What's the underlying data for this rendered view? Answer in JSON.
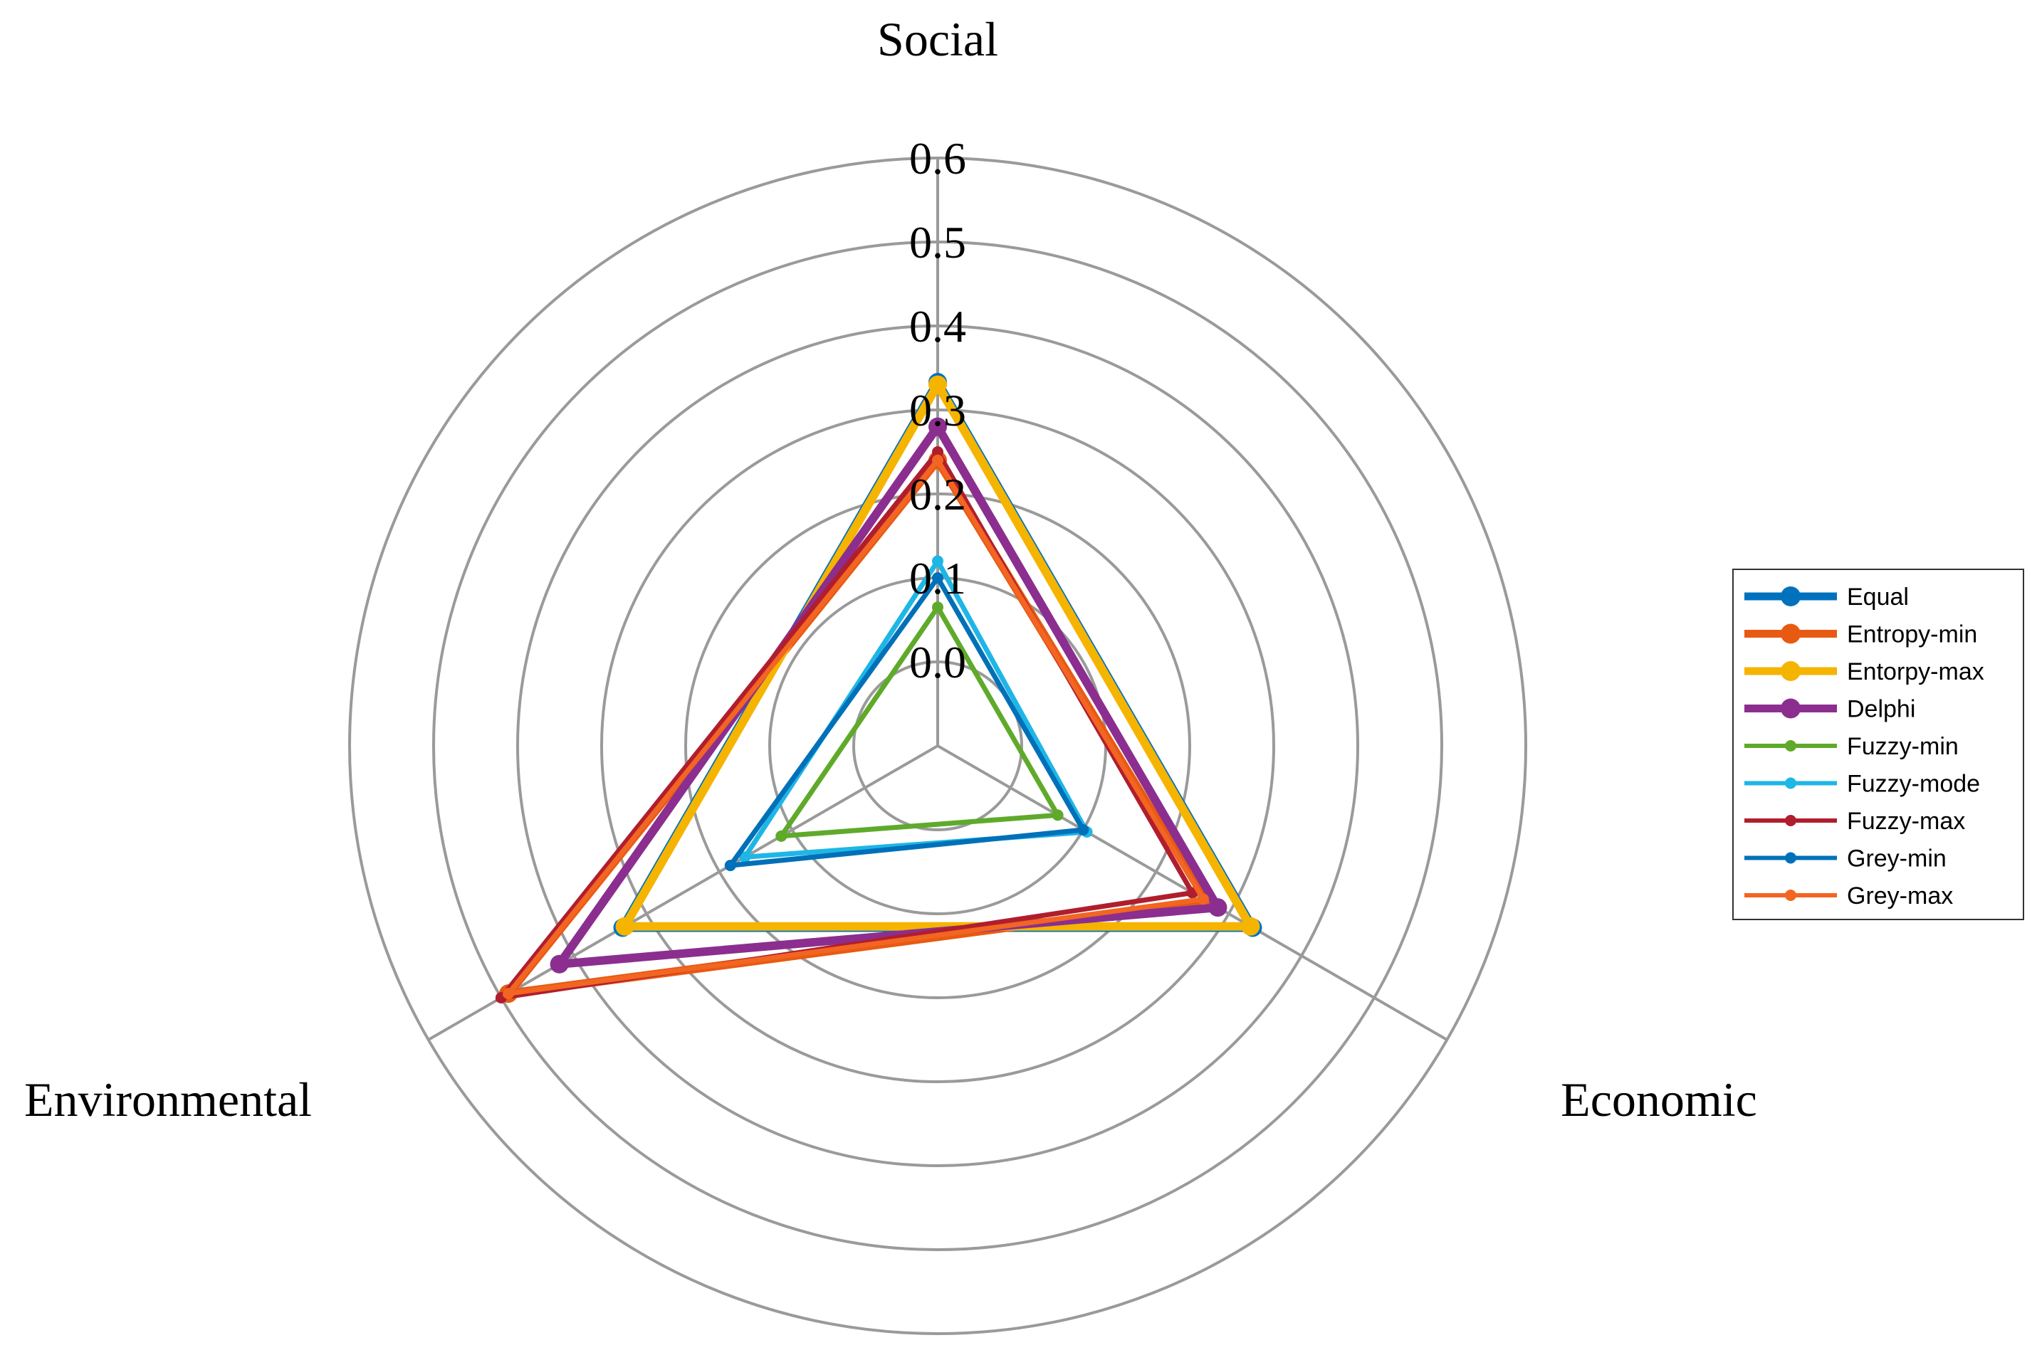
{
  "chart_data": {
    "type": "radar",
    "axes": [
      "Social",
      "Economic",
      "Environmental"
    ],
    "ticks": [
      "0.0",
      "0.1",
      "0.2",
      "0.3",
      "0.4",
      "0.5",
      "0.6"
    ],
    "rlim": [
      -0.1,
      0.6
    ],
    "grid": true,
    "legend_position": "right",
    "series": [
      {
        "name": "Equal",
        "values": [
          0.333,
          0.333,
          0.333
        ],
        "color": "#0072BD",
        "bold": true
      },
      {
        "name": "Entropy-min",
        "values": [
          0.24,
          0.27,
          0.49
        ],
        "color": "#E85A12",
        "bold": true
      },
      {
        "name": "Entorpy-max",
        "values": [
          0.33,
          0.33,
          0.33
        ],
        "color": "#F5B400",
        "bold": true
      },
      {
        "name": "Delphi",
        "values": [
          0.28,
          0.285,
          0.42
        ],
        "color": "#8B2E8F",
        "bold": true
      },
      {
        "name": "Fuzzy-min",
        "values": [
          0.065,
          0.065,
          0.115
        ],
        "color": "#5FAA2A",
        "bold": false
      },
      {
        "name": "Fuzzy-mode",
        "values": [
          0.12,
          0.105,
          0.165
        ],
        "color": "#1EB6E6",
        "bold": false
      },
      {
        "name": "Fuzzy-max",
        "values": [
          0.25,
          0.25,
          0.5
        ],
        "color": "#B01E2E",
        "bold": false
      },
      {
        "name": "Grey-min",
        "values": [
          0.1,
          0.1,
          0.185
        ],
        "color": "#0070B8",
        "bold": false
      },
      {
        "name": "Grey-max",
        "values": [
          0.24,
          0.265,
          0.49
        ],
        "color": "#F26522",
        "bold": false
      }
    ]
  }
}
